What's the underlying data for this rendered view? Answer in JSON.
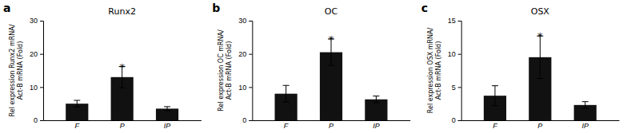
{
  "chart_data": [
    {
      "type": "bar",
      "title": "Runx2",
      "ylabel": [
        "Rel expression Runx2 mRNA/",
        "Act-B mRNA (Fold)"
      ],
      "categories": [
        "F",
        "P",
        "IP"
      ],
      "values": [
        5.0,
        13.0,
        3.5
      ],
      "errors": [
        1.0,
        3.2,
        0.6
      ],
      "color": "#111111",
      "ylim": [
        0,
        30
      ],
      "yticks": [
        0,
        10,
        20,
        30
      ],
      "grid": false,
      "annotations": [
        {
          "text": "a"
        },
        {
          "text": "*",
          "x": "P"
        }
      ]
    },
    {
      "type": "bar",
      "title": "OC",
      "ylabel": [
        "Rel expression OC mRNA/",
        "Act-B mRNA (Fold)"
      ],
      "categories": [
        "F",
        "P",
        "IP"
      ],
      "values": [
        8.0,
        20.5,
        6.3
      ],
      "errors": [
        2.5,
        4.0,
        1.0
      ],
      "color": "#111111",
      "ylim": [
        0,
        30
      ],
      "yticks": [
        0,
        10,
        20,
        30
      ],
      "grid": false,
      "annotations": [
        {
          "text": "b"
        },
        {
          "text": "*",
          "x": "P"
        }
      ]
    },
    {
      "type": "bar",
      "title": "OSX",
      "ylabel": [
        "Rel expression OSX mRNA/",
        "Act-B mRNA (Fold)"
      ],
      "categories": [
        "F",
        "P",
        "IP"
      ],
      "values": [
        3.7,
        9.5,
        2.3
      ],
      "errors": [
        1.5,
        3.2,
        0.5
      ],
      "color": "#111111",
      "ylim": [
        0,
        15
      ],
      "yticks": [
        0,
        5,
        10,
        15
      ],
      "grid": false,
      "annotations": [
        {
          "text": "c"
        },
        {
          "text": "*",
          "x": "P"
        }
      ]
    }
  ]
}
